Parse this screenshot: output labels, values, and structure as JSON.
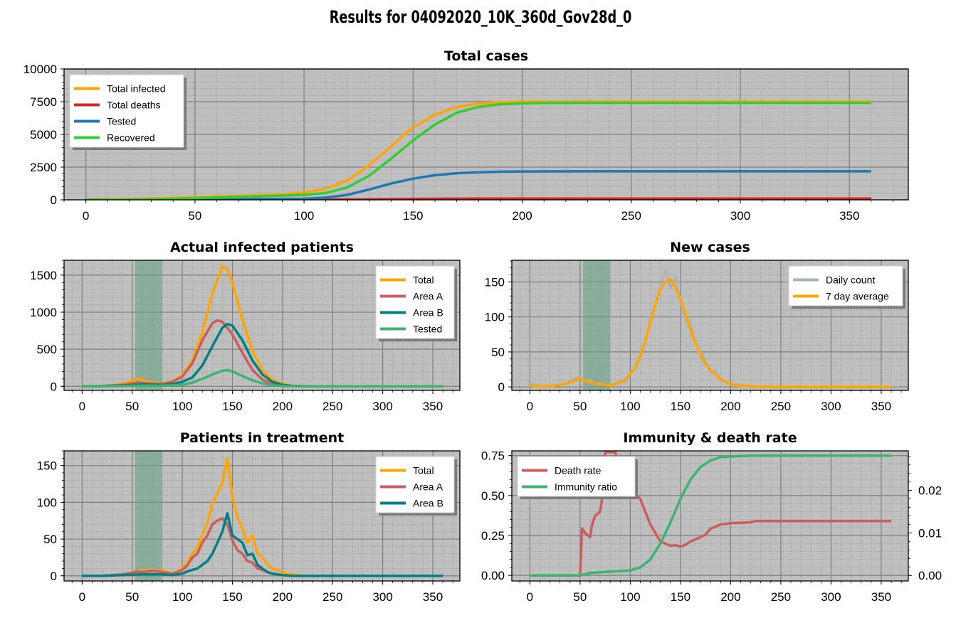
{
  "figure_title": "Results for 04092020_10K_360d_Gov28d_0",
  "colors": {
    "axes_bg": "#bfbfbf",
    "grid_major": "#7f7f7f",
    "grid_minor": "#9a9a9a",
    "orange": "#ffa500",
    "red": "#d62728",
    "blue": "#1f77b4",
    "green": "#32cd32",
    "indianred": "#cd5c5c",
    "teal": "#008080",
    "seagreen": "#3cb371",
    "gray": "#a9b3b0",
    "shade": "#5f9f7f"
  },
  "chart_data": [
    {
      "id": "total",
      "type": "line",
      "title": "Total cases",
      "xlim": [
        -10,
        377
      ],
      "ylim": [
        0,
        10000
      ],
      "xticks": [
        0,
        50,
        100,
        150,
        200,
        250,
        300,
        350
      ],
      "yticks": [
        0,
        2500,
        5000,
        7500,
        10000
      ],
      "ytick_labels": [
        "0",
        "2500",
        "5000",
        "7500",
        "10000"
      ],
      "legend": "top-left",
      "series": [
        {
          "name": "Total infected",
          "color": "orange",
          "x": [
            0,
            20,
            40,
            60,
            80,
            90,
            100,
            110,
            120,
            130,
            140,
            150,
            160,
            170,
            180,
            190,
            200,
            230,
            260,
            300,
            360
          ],
          "y": [
            20,
            60,
            150,
            260,
            350,
            420,
            560,
            860,
            1500,
            2650,
            4100,
            5550,
            6500,
            7100,
            7350,
            7450,
            7500,
            7510,
            7510,
            7510,
            7510
          ]
        },
        {
          "name": "Total deaths",
          "color": "red",
          "x": [
            0,
            50,
            100,
            120,
            140,
            160,
            180,
            200,
            360
          ],
          "y": [
            0,
            2,
            10,
            25,
            55,
            80,
            90,
            95,
            100
          ]
        },
        {
          "name": "Tested",
          "color": "blue",
          "x": [
            0,
            60,
            100,
            110,
            120,
            130,
            140,
            150,
            160,
            170,
            180,
            190,
            200,
            230,
            260,
            300,
            360
          ],
          "y": [
            0,
            40,
            80,
            170,
            380,
            800,
            1250,
            1620,
            1880,
            2030,
            2110,
            2150,
            2170,
            2180,
            2180,
            2180,
            2180
          ]
        },
        {
          "name": "Recovered",
          "color": "green",
          "x": [
            0,
            20,
            40,
            60,
            80,
            90,
            100,
            110,
            120,
            130,
            140,
            150,
            160,
            170,
            180,
            190,
            200,
            210,
            230,
            260,
            300,
            360
          ],
          "y": [
            0,
            20,
            80,
            180,
            270,
            320,
            380,
            520,
            960,
            1860,
            3150,
            4550,
            5750,
            6650,
            7100,
            7300,
            7370,
            7400,
            7420,
            7420,
            7420,
            7420
          ]
        }
      ]
    },
    {
      "id": "actual",
      "type": "line",
      "title": "Actual infected patients",
      "xlim": [
        -18,
        377
      ],
      "ylim": [
        -55,
        1700
      ],
      "xticks": [
        0,
        50,
        100,
        150,
        200,
        250,
        300,
        350
      ],
      "yticks": [
        0,
        500,
        1000,
        1500
      ],
      "ytick_labels": [
        "0",
        "500",
        "1000",
        "1500"
      ],
      "shade": [
        53,
        80
      ],
      "legend": "top-right",
      "series": [
        {
          "name": "Total",
          "color": "orange",
          "x": [
            0,
            20,
            40,
            50,
            55,
            60,
            65,
            70,
            80,
            90,
            100,
            110,
            120,
            130,
            140,
            145,
            150,
            160,
            170,
            180,
            190,
            200,
            210,
            220,
            240,
            360
          ],
          "y": [
            0,
            5,
            30,
            75,
            100,
            90,
            70,
            50,
            40,
            70,
            150,
            350,
            720,
            1250,
            1620,
            1580,
            1400,
            900,
            480,
            220,
            90,
            30,
            10,
            2,
            0,
            0
          ]
        },
        {
          "name": "Area A",
          "color": "indianred",
          "x": [
            0,
            20,
            40,
            55,
            70,
            80,
            90,
            100,
            110,
            120,
            130,
            135,
            140,
            150,
            160,
            170,
            180,
            190,
            200,
            220,
            360
          ],
          "y": [
            0,
            4,
            20,
            50,
            35,
            30,
            60,
            130,
            310,
            620,
            850,
            890,
            870,
            700,
            450,
            220,
            90,
            30,
            10,
            0,
            0
          ]
        },
        {
          "name": "Area B",
          "color": "teal",
          "x": [
            0,
            20,
            40,
            60,
            80,
            90,
            100,
            110,
            120,
            130,
            140,
            145,
            150,
            160,
            170,
            180,
            190,
            200,
            210,
            230,
            360
          ],
          "y": [
            0,
            2,
            10,
            25,
            20,
            30,
            60,
            120,
            280,
            540,
            790,
            840,
            820,
            620,
            350,
            160,
            60,
            20,
            5,
            0,
            0
          ]
        },
        {
          "name": "Tested",
          "color": "seagreen",
          "x": [
            0,
            40,
            60,
            80,
            100,
            110,
            120,
            130,
            140,
            145,
            150,
            160,
            170,
            180,
            190,
            200,
            220,
            360
          ],
          "y": [
            0,
            5,
            10,
            8,
            20,
            50,
            100,
            160,
            210,
            220,
            200,
            140,
            80,
            40,
            15,
            5,
            0,
            0
          ]
        }
      ]
    },
    {
      "id": "newcases",
      "type": "line",
      "title": "New cases",
      "xlim": [
        -18,
        377
      ],
      "ylim": [
        -5,
        181
      ],
      "xticks": [
        0,
        50,
        100,
        150,
        200,
        250,
        300,
        350
      ],
      "yticks": [
        0,
        50,
        100,
        150
      ],
      "ytick_labels": [
        "0",
        "50",
        "100",
        "150"
      ],
      "shade": [
        53,
        80
      ],
      "legend": "top-right",
      "series": [
        {
          "name": "Daily count",
          "color": "gray",
          "x": [
            0,
            10,
            20,
            30,
            40,
            45,
            50,
            55,
            60,
            65,
            70,
            75,
            80,
            85,
            90,
            95,
            100,
            105,
            110,
            115,
            120,
            125,
            130,
            135,
            140,
            145,
            150,
            155,
            160,
            165,
            170,
            175,
            180,
            185,
            190,
            195,
            200,
            205,
            210,
            220,
            240,
            360
          ],
          "y": [
            5,
            2,
            0,
            3,
            8,
            12,
            15,
            8,
            10,
            4,
            6,
            3,
            1,
            5,
            9,
            6,
            18,
            25,
            45,
            62,
            100,
            118,
            142,
            168,
            140,
            158,
            120,
            95,
            88,
            65,
            50,
            38,
            20,
            24,
            12,
            6,
            4,
            2,
            1,
            0,
            0,
            0
          ]
        },
        {
          "name": "7 day average",
          "color": "orange",
          "x": [
            0,
            10,
            20,
            30,
            40,
            45,
            50,
            55,
            60,
            65,
            70,
            75,
            80,
            85,
            90,
            95,
            100,
            105,
            110,
            115,
            120,
            125,
            130,
            135,
            140,
            145,
            150,
            155,
            160,
            165,
            170,
            175,
            180,
            185,
            190,
            195,
            200,
            210,
            220,
            240,
            360
          ],
          "y": [
            2,
            1,
            1,
            3,
            6,
            9,
            12,
            9,
            6,
            5,
            4,
            3,
            2,
            4,
            7,
            10,
            18,
            28,
            44,
            65,
            92,
            118,
            140,
            150,
            154,
            142,
            125,
            105,
            82,
            62,
            46,
            33,
            24,
            17,
            11,
            7,
            4,
            2,
            1,
            0,
            0
          ]
        }
      ]
    },
    {
      "id": "treatment",
      "type": "line",
      "title": "Patients in treatment",
      "xlim": [
        -18,
        377
      ],
      "ylim": [
        -7,
        170
      ],
      "xticks": [
        0,
        50,
        100,
        150,
        200,
        250,
        300,
        350
      ],
      "yticks": [
        0,
        50,
        100,
        150
      ],
      "ytick_labels": [
        "0",
        "50",
        "100",
        "150"
      ],
      "shade": [
        53,
        80
      ],
      "legend": "top-right",
      "series": [
        {
          "name": "Total",
          "color": "orange",
          "x": [
            0,
            20,
            40,
            50,
            55,
            60,
            65,
            70,
            75,
            80,
            85,
            90,
            95,
            100,
            105,
            110,
            115,
            120,
            125,
            130,
            135,
            140,
            145,
            150,
            155,
            160,
            165,
            170,
            175,
            180,
            185,
            190,
            195,
            200,
            205,
            210,
            220,
            360
          ],
          "y": [
            0,
            0,
            2,
            5,
            6,
            8,
            7,
            9,
            6,
            8,
            5,
            3,
            6,
            10,
            18,
            30,
            38,
            55,
            72,
            98,
            112,
            126,
            160,
            108,
            80,
            65,
            45,
            55,
            30,
            25,
            15,
            10,
            8,
            5,
            3,
            2,
            0,
            0
          ]
        },
        {
          "name": "Area A",
          "color": "indianred",
          "x": [
            0,
            20,
            40,
            50,
            55,
            60,
            65,
            70,
            75,
            80,
            85,
            90,
            95,
            100,
            105,
            110,
            115,
            120,
            125,
            130,
            135,
            140,
            145,
            150,
            155,
            160,
            165,
            170,
            175,
            180,
            185,
            190,
            195,
            200,
            210,
            220,
            360
          ],
          "y": [
            0,
            0,
            2,
            4,
            6,
            5,
            6,
            7,
            6,
            5,
            4,
            3,
            5,
            8,
            14,
            25,
            30,
            45,
            55,
            70,
            75,
            78,
            70,
            48,
            35,
            30,
            20,
            18,
            10,
            8,
            5,
            3,
            2,
            1,
            0,
            0,
            0
          ]
        },
        {
          "name": "Area B",
          "color": "teal",
          "x": [
            0,
            20,
            40,
            60,
            80,
            90,
            100,
            105,
            110,
            115,
            120,
            125,
            130,
            135,
            140,
            145,
            150,
            155,
            160,
            165,
            170,
            175,
            180,
            185,
            190,
            195,
            200,
            210,
            220,
            360
          ],
          "y": [
            0,
            0,
            1,
            2,
            2,
            1,
            3,
            6,
            8,
            10,
            15,
            20,
            30,
            45,
            60,
            85,
            55,
            50,
            45,
            28,
            30,
            15,
            10,
            5,
            3,
            2,
            1,
            0,
            0,
            0
          ]
        }
      ]
    },
    {
      "id": "immunity",
      "type": "line",
      "title": "Immunity & death rate",
      "xlim": [
        -18,
        377
      ],
      "ylim": [
        -0.035,
        0.78
      ],
      "xticks": [
        0,
        50,
        100,
        150,
        200,
        250,
        300,
        350
      ],
      "yticks": [
        0,
        0.25,
        0.5,
        0.75
      ],
      "ytick_labels": [
        "0.00",
        "0.25",
        "0.50",
        "0.75"
      ],
      "y2lim": [
        -0.0013,
        0.0293
      ],
      "y2ticks": [
        0,
        0.01,
        0.02
      ],
      "y2tick_labels": [
        "0.00",
        "0.01",
        "0.02"
      ],
      "legend": "top-left",
      "series": [
        {
          "name": "Death rate",
          "color": "indianred",
          "axis": "right",
          "x": [
            0,
            50,
            52,
            55,
            60,
            62,
            65,
            70,
            72,
            75,
            78,
            80,
            85,
            90,
            95,
            100,
            105,
            110,
            115,
            120,
            125,
            130,
            135,
            140,
            145,
            150,
            155,
            160,
            165,
            170,
            175,
            180,
            185,
            190,
            200,
            220,
            225,
            230,
            360
          ],
          "y": [
            0,
            0,
            0.011,
            0.01,
            0.009,
            0.012,
            0.014,
            0.015,
            0.018,
            0.029,
            0.029,
            0.029,
            0.029,
            0.024,
            0.021,
            0.02,
            0.019,
            0.018,
            0.015,
            0.012,
            0.01,
            0.008,
            0.0075,
            0.007,
            0.0071,
            0.0068,
            0.0072,
            0.008,
            0.0085,
            0.009,
            0.0096,
            0.011,
            0.0115,
            0.012,
            0.0123,
            0.0125,
            0.0128,
            0.0128,
            0.0128
          ]
        },
        {
          "name": "Immunity ratio",
          "color": "seagreen",
          "axis": "left",
          "x": [
            0,
            50,
            60,
            70,
            80,
            90,
            100,
            110,
            120,
            130,
            140,
            150,
            160,
            170,
            180,
            190,
            200,
            220,
            260,
            360
          ],
          "y": [
            0,
            0,
            0.015,
            0.02,
            0.024,
            0.027,
            0.032,
            0.05,
            0.1,
            0.2,
            0.33,
            0.48,
            0.6,
            0.68,
            0.72,
            0.74,
            0.745,
            0.75,
            0.75,
            0.75
          ]
        }
      ]
    }
  ]
}
